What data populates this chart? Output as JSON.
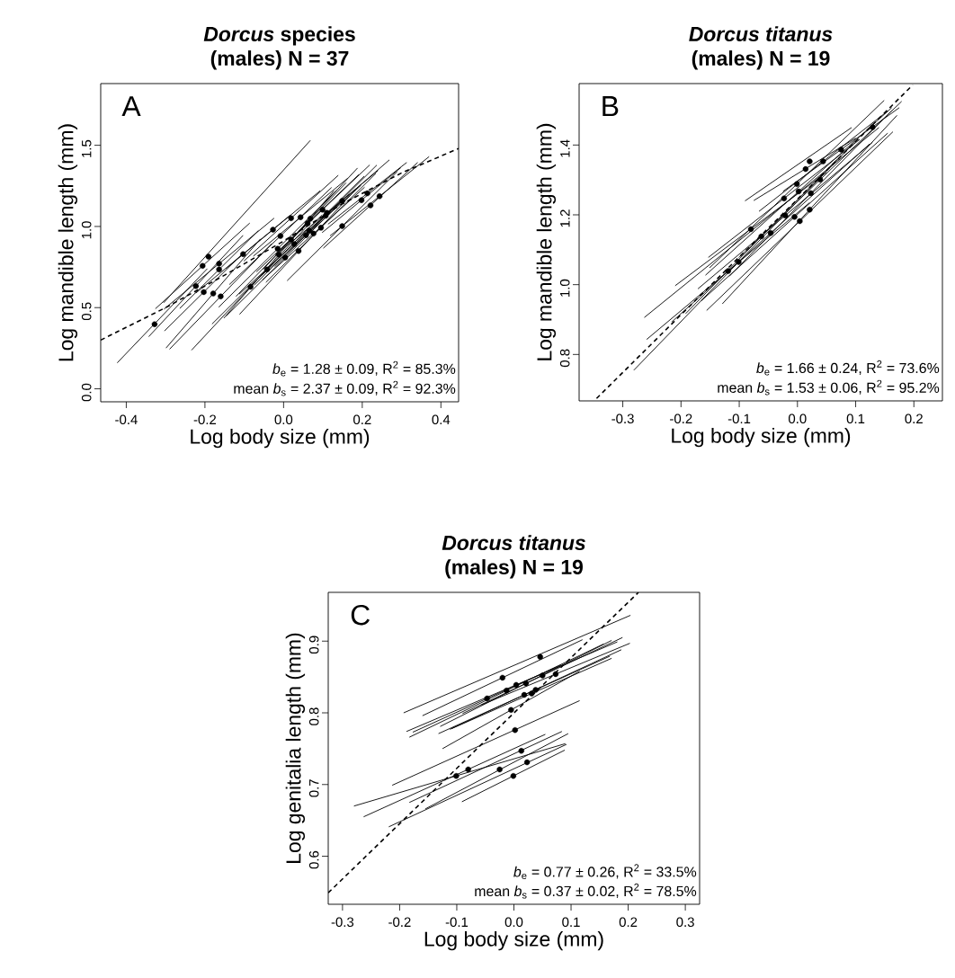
{
  "chart_data": [
    {
      "type": "line",
      "title": "*Dorcus* species",
      "subtitle": "(males) N = 37",
      "xlabel": "Log body size (mm)",
      "ylabel": "Log mandible length (mm)",
      "xlim": [
        -0.465,
        0.445
      ],
      "ylim": [
        -0.08,
        1.88
      ],
      "xticks": [
        {
          "value": -0.4,
          "label": "-0.4"
        },
        {
          "value": -0.2,
          "label": "-0.2"
        },
        {
          "value": 0,
          "label": "0.0"
        },
        {
          "value": 0.2,
          "label": "0.2"
        },
        {
          "value": 0.4,
          "label": "0.4"
        }
      ],
      "yticks": [
        {
          "value": 0,
          "label": "0.0"
        },
        {
          "value": 0.5,
          "label": "0.5"
        },
        {
          "value": 1,
          "label": "1.0"
        },
        {
          "value": 1.5,
          "label": "1.5"
        }
      ],
      "annotations": [
        "A",
        "*b*$_{e}$ = 1.28 ± 0.09, R$^{2}$ = 85.3%",
        "mean *b*$_{s}$ = 2.37 ± 0.09, R$^{2}$ = 92.3%"
      ],
      "series": [
        {
          "type": "line",
          "marker": "none",
          "color": "#000000",
          "x": [
            -0.423,
            -0.194
          ],
          "values": [
            0.16,
            0.74
          ]
        },
        {
          "type": "line",
          "marker": "none",
          "color": "#000000",
          "x": [
            -0.326,
            -0.086
          ],
          "values": [
            0.493,
            1.021
          ]
        },
        {
          "type": "line",
          "marker": "none",
          "color": "#000000",
          "x": [
            -0.305,
            0.068
          ],
          "values": [
            0.53,
            1.53
          ]
        },
        {
          "type": "line",
          "marker": "none",
          "color": "#000000",
          "x": [
            -0.343,
            -0.103
          ],
          "values": [
            0.321,
            0.945
          ]
        },
        {
          "type": "line",
          "marker": "none",
          "color": "#000000",
          "x": [
            -0.303,
            -0.103
          ],
          "values": [
            0.356,
            0.836
          ]
        },
        {
          "type": "line",
          "marker": "none",
          "color": "#000000",
          "x": [
            -0.299,
            -0.059
          ],
          "values": [
            0.251,
            0.923
          ]
        },
        {
          "type": "line",
          "marker": "none",
          "color": "#000000",
          "x": [
            -0.29,
            -0.03
          ],
          "values": [
            0.244,
            0.894
          ]
        },
        {
          "type": "line",
          "marker": "none",
          "color": "#000000",
          "x": [
            -0.304,
            -0.024
          ],
          "values": [
            0.491,
            1.051
          ]
        },
        {
          "type": "line",
          "marker": "none",
          "color": "#000000",
          "x": [
            -0.264,
            -0.064
          ],
          "values": [
            0.495,
            0.975
          ]
        },
        {
          "type": "line",
          "marker": "none",
          "color": "#000000",
          "x": [
            -0.223,
            0.017
          ],
          "values": [
            0.59,
            1.07
          ]
        },
        {
          "type": "line",
          "marker": "none",
          "color": "#000000",
          "x": [
            -0.234,
            0.066
          ],
          "values": [
            0.238,
            1.018
          ]
        },
        {
          "type": "line",
          "marker": "none",
          "color": "#000000",
          "x": [
            -0.147,
            0.093
          ],
          "values": [
            0.74,
            1.22
          ]
        },
        {
          "type": "line",
          "marker": "none",
          "color": "#000000",
          "x": [
            -0.138,
            0.122
          ],
          "values": [
            0.642,
            1.24
          ]
        },
        {
          "type": "line",
          "marker": "none",
          "color": "#000000",
          "x": [
            -0.165,
            0.135
          ],
          "values": [
            0.503,
            1.223
          ]
        },
        {
          "type": "line",
          "marker": "none",
          "color": "#000000",
          "x": [
            -0.152,
            0.128
          ],
          "values": [
            0.435,
            1.219
          ]
        },
        {
          "type": "line",
          "marker": "none",
          "color": "#000000",
          "x": [
            -0.101,
            0.139
          ],
          "values": [
            0.787,
            1.315
          ]
        },
        {
          "type": "line",
          "marker": "none",
          "color": "#000000",
          "x": [
            -0.121,
            0.159
          ],
          "values": [
            0.569,
            1.269
          ]
        },
        {
          "type": "line",
          "marker": "none",
          "color": "#000000",
          "x": [
            -0.112,
            0.188
          ],
          "values": [
            0.459,
            1.239
          ]
        },
        {
          "type": "line",
          "marker": "none",
          "color": "#000000",
          "x": [
            -0.077,
            0.163
          ],
          "values": [
            0.817,
            1.297
          ]
        },
        {
          "type": "line",
          "marker": "none",
          "color": "#000000",
          "x": [
            -0.069,
            0.191
          ],
          "values": [
            0.721,
            1.319
          ]
        },
        {
          "type": "line",
          "marker": "none",
          "color": "#000000",
          "x": [
            -0.075,
            0.205
          ],
          "values": [
            0.638,
            1.31
          ]
        },
        {
          "type": "line",
          "marker": "none",
          "color": "#000000",
          "x": [
            -0.052,
            0.188
          ],
          "values": [
            0.736,
            1.36
          ]
        },
        {
          "type": "line",
          "marker": "none",
          "color": "#000000",
          "x": [
            -0.054,
            0.206
          ],
          "values": [
            0.67,
            1.242
          ]
        },
        {
          "type": "line",
          "marker": "none",
          "color": "#000000",
          "x": [
            -0.045,
            0.235
          ],
          "values": [
            0.656,
            1.328
          ]
        },
        {
          "type": "line",
          "marker": "none",
          "color": "#000000",
          "x": [
            -0.021,
            0.219
          ],
          "values": [
            0.827,
            1.379
          ]
        },
        {
          "type": "line",
          "marker": "none",
          "color": "#000000",
          "x": [
            -0.02,
            0.24
          ],
          "values": [
            0.824,
            1.344
          ]
        },
        {
          "type": "line",
          "marker": "none",
          "color": "#000000",
          "x": [
            0.029,
            0.269
          ],
          "values": [
            0.906,
            1.41
          ]
        },
        {
          "type": "line",
          "marker": "none",
          "color": "#000000",
          "x": [
            0.009,
            0.289
          ],
          "values": [
            0.666,
            1.338
          ]
        },
        {
          "type": "line",
          "marker": "none",
          "color": "#000000",
          "x": [
            0.098,
            0.298
          ],
          "values": [
            0.962,
            1.362
          ]
        },
        {
          "type": "line",
          "marker": "none",
          "color": "#000000",
          "x": [
            0.113,
            0.313
          ],
          "values": [
            1.014,
            1.394
          ]
        },
        {
          "type": "line",
          "marker": "none",
          "color": "#000000",
          "x": [
            0.101,
            0.341
          ],
          "values": [
            0.866,
            1.394
          ]
        },
        {
          "type": "line",
          "marker": "none",
          "color": "#000000",
          "x": [
            0.118,
            0.37
          ],
          "values": [
            0.942,
            1.43
          ]
        },
        {
          "type": "line",
          "marker": "none",
          "color": "#000000",
          "x": [
            -0.113,
            0.167
          ],
          "values": [
            0.583,
            1.199
          ]
        },
        {
          "type": "line",
          "marker": "none",
          "color": "#000000",
          "x": [
            -0.182,
            0.098
          ],
          "values": [
            0.399,
            1.071
          ]
        },
        {
          "type": "line",
          "marker": "none",
          "color": "#000000",
          "x": [
            -0.146,
            0.154
          ],
          "values": [
            0.448,
            1.168
          ]
        },
        {
          "type": "line",
          "marker": "none",
          "color": "#000000",
          "x": [
            -0.083,
            0.197
          ],
          "values": [
            0.638,
            1.254
          ]
        },
        {
          "type": "line",
          "marker": "none",
          "color": "#000000",
          "x": [
            -0.023,
            0.237
          ],
          "values": [
            0.754,
            1.378
          ]
        },
        {
          "type": "line",
          "marker": "none",
          "color": "#000000",
          "line_style": "dashed",
          "x": [
            -0.465,
            -0.3,
            -0.15,
            0.0,
            0.15,
            0.3,
            0.445
          ],
          "values": [
            0.3,
            0.5,
            0.7,
            0.91,
            1.14,
            1.33,
            1.48
          ]
        },
        {
          "type": "scatter",
          "color": "#000000",
          "x": [
            -0.328,
            -0.206,
            -0.191,
            -0.223,
            -0.203,
            -0.179,
            -0.16,
            -0.164,
            -0.164,
            -0.103,
            -0.084,
            -0.027,
            -0.008,
            -0.015,
            -0.012,
            0.019,
            0.019,
            0.038,
            0.043,
            0.061,
            0.065,
            0.068,
            0.076,
            0.095,
            0.099,
            0.11,
            0.149,
            0.149,
            0.198,
            0.213,
            0.221,
            0.244,
            0.027,
            -0.042,
            0.004,
            0.057,
            0.107
          ],
          "values": [
            0.398,
            0.757,
            0.814,
            0.633,
            0.596,
            0.587,
            0.569,
            0.771,
            0.735,
            0.83,
            0.628,
            0.98,
            0.941,
            0.863,
            0.827,
            1.051,
            0.919,
            0.849,
            1.057,
            1.02,
            0.974,
            1.048,
            0.956,
            0.992,
            1.103,
            1.084,
            1.158,
            1.002,
            1.162,
            1.204,
            1.13,
            1.186,
            0.891,
            0.735,
            0.808,
            0.946,
            1.066
          ]
        }
      ]
    },
    {
      "type": "line",
      "title": "*Dorcus titanus*",
      "subtitle": "(males) N = 19",
      "xlabel": "Log body size (mm)",
      "ylabel": "Log mandible length (mm)",
      "xlim": [
        -0.375,
        0.249
      ],
      "ylim": [
        0.667,
        1.576
      ],
      "xticks": [
        {
          "value": -0.3,
          "label": "-0.3"
        },
        {
          "value": -0.2,
          "label": "-0.2"
        },
        {
          "value": -0.1,
          "label": "-0.1"
        },
        {
          "value": 0,
          "label": "0.0"
        },
        {
          "value": 0.1,
          "label": "0.1"
        },
        {
          "value": 0.2,
          "label": "0.2"
        }
      ],
      "yticks": [
        {
          "value": 0.8,
          "label": "0.8"
        },
        {
          "value": 1,
          "label": "1.0"
        },
        {
          "value": 1.2,
          "label": "1.2"
        },
        {
          "value": 1.4,
          "label": "1.4"
        }
      ],
      "annotations": [
        "B",
        "*b*$_{e}$ = 1.66 ± 0.24, R$^{2}$ = 73.6%",
        "mean *b*$_{s}$ = 1.53 ± 0.06, R$^{2}$ = 95.2%"
      ],
      "series": [
        {
          "type": "line",
          "marker": "none",
          "color": "#000000",
          "x": [
            -0.09,
            0.093
          ],
          "values": [
            1.24,
            1.45
          ]
        },
        {
          "type": "line",
          "marker": "none",
          "color": "#000000",
          "x": [
            -0.075,
            0.1
          ],
          "values": [
            1.241,
            1.42
          ]
        },
        {
          "type": "line",
          "marker": "none",
          "color": "#000000",
          "x": [
            -0.151,
            0.149
          ],
          "values": [
            1.048,
            1.528
          ]
        },
        {
          "type": "line",
          "marker": "none",
          "color": "#000000",
          "x": [
            -0.158,
            0.162
          ],
          "values": [
            1.027,
            1.507
          ]
        },
        {
          "type": "line",
          "marker": "none",
          "color": "#000000",
          "x": [
            -0.153,
            0.107
          ],
          "values": [
            1.078,
            1.416
          ]
        },
        {
          "type": "line",
          "marker": "none",
          "color": "#000000",
          "x": [
            -0.117,
            0.163
          ],
          "values": [
            1.024,
            1.5
          ]
        },
        {
          "type": "line",
          "marker": "none",
          "color": "#000000",
          "x": [
            -0.129,
            0.171
          ],
          "values": [
            0.945,
            1.485
          ]
        },
        {
          "type": "line",
          "marker": "none",
          "color": "#000000",
          "x": [
            -0.156,
            0.164
          ],
          "values": [
            0.926,
            1.438
          ]
        },
        {
          "type": "line",
          "marker": "none",
          "color": "#000000",
          "x": [
            -0.165,
            0.155
          ],
          "values": [
            0.954,
            1.434
          ]
        },
        {
          "type": "line",
          "marker": "none",
          "color": "#000000",
          "x": [
            -0.171,
            0.129
          ],
          "values": [
            0.988,
            1.408
          ]
        },
        {
          "type": "line",
          "marker": "none",
          "color": "#000000",
          "x": [
            -0.216,
            0.124
          ],
          "values": [
            0.893,
            1.403
          ]
        },
        {
          "type": "line",
          "marker": "none",
          "color": "#000000",
          "x": [
            -0.192,
            0.068
          ],
          "values": [
            0.917,
            1.359
          ]
        },
        {
          "type": "line",
          "marker": "none",
          "color": "#000000",
          "x": [
            -0.21,
            0.05
          ],
          "values": [
            0.997,
            1.322
          ]
        },
        {
          "type": "line",
          "marker": "none",
          "color": "#000000",
          "x": [
            -0.281,
            0.1
          ],
          "values": [
            0.755,
            1.411
          ]
        },
        {
          "type": "line",
          "marker": "none",
          "color": "#000000",
          "x": [
            -0.259,
            0.021
          ],
          "values": [
            0.843,
            1.235
          ]
        },
        {
          "type": "line",
          "marker": "none",
          "color": "#000000",
          "x": [
            -0.066,
            0.154
          ],
          "values": [
            1.21,
            1.496
          ]
        },
        {
          "type": "line",
          "marker": "none",
          "color": "#000000",
          "x": [
            -0.101,
            0.179
          ],
          "values": [
            1.077,
            1.525
          ]
        },
        {
          "type": "line",
          "marker": "none",
          "color": "#000000",
          "x": [
            -0.025,
            0.175
          ],
          "values": [
            1.267,
            1.507
          ]
        },
        {
          "type": "line",
          "marker": "none",
          "color": "#000000",
          "x": [
            -0.263,
            0.14
          ],
          "values": [
            0.906,
            1.45
          ]
        },
        {
          "type": "line",
          "marker": "none",
          "color": "#000000",
          "line_style": "dashed",
          "x": [
            -0.345,
            0.198
          ],
          "values": [
            0.674,
            1.572
          ]
        },
        {
          "type": "scatter",
          "color": "#000000",
          "x": [
            0.021,
            0.014,
            -0.001,
            0.002,
            -0.023,
            0.023,
            0.021,
            0.004,
            -0.005,
            -0.021,
            -0.046,
            -0.062,
            -0.08,
            -0.101,
            -0.119,
            0.044,
            0.039,
            0.075,
            0.129
          ],
          "values": [
            1.353,
            1.331,
            1.288,
            1.267,
            1.247,
            1.262,
            1.215,
            1.182,
            1.194,
            1.198,
            1.148,
            1.138,
            1.159,
            1.065,
            1.039,
            1.353,
            1.301,
            1.387,
            1.451
          ]
        }
      ]
    },
    {
      "type": "line",
      "title": "*Dorcus titanus*",
      "subtitle": "(males) N = 19",
      "xlabel": "Log body size (mm)",
      "ylabel": "Log genitalia length (mm)",
      "xlim": [
        -0.325,
        0.325
      ],
      "ylim": [
        0.533,
        0.968
      ],
      "xticks": [
        {
          "value": -0.3,
          "label": "-0.3"
        },
        {
          "value": -0.2,
          "label": "-0.2"
        },
        {
          "value": -0.1,
          "label": "-0.1"
        },
        {
          "value": 0,
          "label": "0.0"
        },
        {
          "value": 0.1,
          "label": "0.1"
        },
        {
          "value": 0.2,
          "label": "0.2"
        },
        {
          "value": 0.3,
          "label": "0.3"
        }
      ],
      "yticks": [
        {
          "value": 0.6,
          "label": "0.6"
        },
        {
          "value": 0.7,
          "label": "0.7"
        },
        {
          "value": 0.8,
          "label": "0.8"
        },
        {
          "value": 0.9,
          "label": "0.9"
        }
      ],
      "annotations": [
        "C",
        "*b*$_{e}$ = 0.77 ± 0.26, R$^{2}$ = 33.5%",
        "mean *b*$_{s}$ = 0.37 ± 0.02, R$^{2}$ = 78.5%"
      ],
      "series": [
        {
          "type": "line",
          "marker": "none",
          "color": "#000000",
          "x": [
            -0.193,
            0.204
          ],
          "values": [
            0.8,
            0.936
          ]
        },
        {
          "type": "line",
          "marker": "none",
          "color": "#000000",
          "x": [
            -0.16,
            0.12
          ],
          "values": [
            0.796,
            0.902
          ]
        },
        {
          "type": "line",
          "marker": "none",
          "color": "#000000",
          "x": [
            -0.188,
            0.181
          ],
          "values": [
            0.774,
            0.899
          ]
        },
        {
          "type": "line",
          "marker": "none",
          "color": "#000000",
          "x": [
            -0.129,
            0.171
          ],
          "values": [
            0.781,
            0.901
          ]
        },
        {
          "type": "line",
          "marker": "none",
          "color": "#000000",
          "x": [
            -0.183,
            0.157
          ],
          "values": [
            0.766,
            0.896
          ]
        },
        {
          "type": "line",
          "marker": "none",
          "color": "#000000",
          "x": [
            -0.177,
            0.083
          ],
          "values": [
            0.773,
            0.867
          ]
        },
        {
          "type": "line",
          "marker": "none",
          "color": "#000000",
          "x": [
            -0.112,
            0.188
          ],
          "values": [
            0.777,
            0.888
          ]
        },
        {
          "type": "line",
          "marker": "none",
          "color": "#000000",
          "x": [
            -0.109,
            0.171
          ],
          "values": [
            0.778,
            0.876
          ]
        },
        {
          "type": "line",
          "marker": "none",
          "color": "#000000",
          "x": [
            -0.057,
            0.203
          ],
          "values": [
            0.811,
            0.897
          ]
        },
        {
          "type": "line",
          "marker": "none",
          "color": "#000000",
          "x": [
            -0.125,
            0.115
          ],
          "values": [
            0.75,
            0.858
          ]
        },
        {
          "type": "line",
          "marker": "none",
          "color": "#000000",
          "x": [
            -0.213,
            0.115
          ],
          "values": [
            0.699,
            0.817
          ]
        },
        {
          "type": "line",
          "marker": "none",
          "color": "#000000",
          "x": [
            -0.183,
            0.084
          ],
          "values": [
            0.675,
            0.774
          ]
        },
        {
          "type": "line",
          "marker": "none",
          "color": "#000000",
          "x": [
            -0.219,
            0.092
          ],
          "values": [
            0.641,
            0.756
          ]
        },
        {
          "type": "line",
          "marker": "none",
          "color": "#000000",
          "x": [
            -0.155,
            0.095
          ],
          "values": [
            0.666,
            0.771
          ]
        },
        {
          "type": "line",
          "marker": "none",
          "color": "#000000",
          "x": [
            -0.091,
            0.089
          ],
          "values": [
            0.676,
            0.748
          ]
        },
        {
          "type": "line",
          "marker": "none",
          "color": "#000000",
          "x": [
            -0.263,
            0.055
          ],
          "values": [
            0.655,
            0.77
          ]
        },
        {
          "type": "line",
          "marker": "none",
          "color": "#000000",
          "x": [
            -0.28,
            0.09
          ],
          "values": [
            0.67,
            0.757
          ]
        },
        {
          "type": "line",
          "marker": "none",
          "color": "#000000",
          "x": [
            -0.09,
            0.19
          ],
          "values": [
            0.799,
            0.905
          ]
        },
        {
          "type": "line",
          "marker": "none",
          "color": "#000000",
          "x": [
            -0.132,
            0.168
          ],
          "values": [
            0.771,
            0.879
          ]
        },
        {
          "type": "line",
          "marker": "none",
          "color": "#000000",
          "line_style": "dashed",
          "x": [
            -0.325,
            0.218
          ],
          "values": [
            0.549,
            0.968
          ]
        },
        {
          "type": "scatter",
          "color": "#000000",
          "x": [
            0.046,
            -0.02,
            0.004,
            0.021,
            -0.013,
            -0.047,
            0.038,
            0.031,
            0.073,
            -0.005,
            0.002,
            0.013,
            0.023,
            -0.025,
            -0.001,
            -0.08,
            -0.101,
            0.05,
            0.018
          ],
          "values": [
            0.878,
            0.849,
            0.839,
            0.841,
            0.831,
            0.82,
            0.832,
            0.827,
            0.854,
            0.804,
            0.776,
            0.747,
            0.731,
            0.721,
            0.712,
            0.721,
            0.712,
            0.852,
            0.825
          ]
        }
      ]
    }
  ]
}
